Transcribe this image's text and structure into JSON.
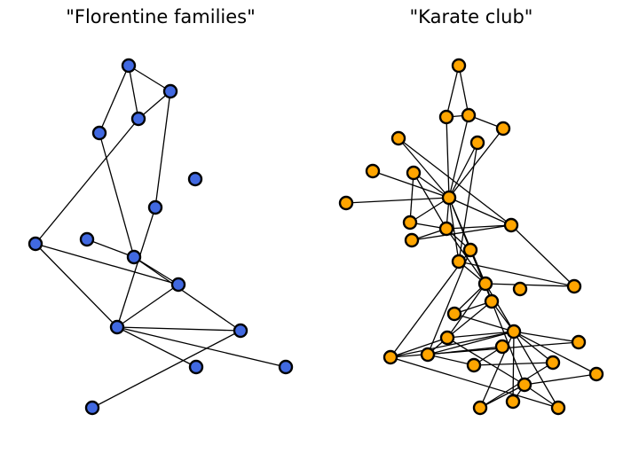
{
  "panels": [
    {
      "title": "\"Florentine families\"",
      "node_color": "#4169e1",
      "nodes": [
        "n0",
        "n1",
        "n2",
        "n3",
        "n4",
        "n5",
        "n6",
        "n7",
        "n8",
        "n9",
        "n10",
        "n11",
        "n12",
        "n13",
        "n14"
      ],
      "edges": [
        [
          "n0",
          "n1"
        ],
        [
          "n0",
          "n2"
        ],
        [
          "n0",
          "n3"
        ],
        [
          "n1",
          "n2"
        ],
        [
          "n1",
          "n5"
        ],
        [
          "n2",
          "n6"
        ],
        [
          "n3",
          "n8"
        ],
        [
          "n5",
          "n10"
        ],
        [
          "n6",
          "n9"
        ],
        [
          "n6",
          "n10"
        ],
        [
          "n7",
          "n8"
        ],
        [
          "n8",
          "n9"
        ],
        [
          "n8",
          "n11"
        ],
        [
          "n9",
          "n10"
        ],
        [
          "n10",
          "n11"
        ],
        [
          "n10",
          "n12"
        ],
        [
          "n10",
          "n13"
        ],
        [
          "n11",
          "n14"
        ]
      ]
    },
    {
      "title": "\"Karate club\"",
      "node_color": "#ffa500",
      "nodes": [
        "k0",
        "k1",
        "k2",
        "k3",
        "k4",
        "k5",
        "k6",
        "k7",
        "k8",
        "k9",
        "k10",
        "k11",
        "k12",
        "k13",
        "k14",
        "k15",
        "k16",
        "k17",
        "k18",
        "k19",
        "k20",
        "k21",
        "k22",
        "k23",
        "k24",
        "k25",
        "k26",
        "k27",
        "k28",
        "k29",
        "k30",
        "k31",
        "k32",
        "k33"
      ],
      "edges": [
        [
          "k0",
          "k1"
        ],
        [
          "k0",
          "k2"
        ],
        [
          "k1",
          "k2"
        ],
        [
          "k2",
          "k3"
        ],
        [
          "k1",
          "k4"
        ],
        [
          "k2",
          "k4"
        ],
        [
          "k3",
          "k4"
        ],
        [
          "k4",
          "k5"
        ],
        [
          "k4",
          "k6"
        ],
        [
          "k4",
          "k7"
        ],
        [
          "k4",
          "k8"
        ],
        [
          "k4",
          "k9"
        ],
        [
          "k4",
          "k10"
        ],
        [
          "k4",
          "k11"
        ],
        [
          "k4",
          "k13"
        ],
        [
          "k4",
          "k14"
        ],
        [
          "k4",
          "k16"
        ],
        [
          "k4",
          "k17"
        ],
        [
          "k10",
          "k11"
        ],
        [
          "k11",
          "k13"
        ],
        [
          "k12",
          "k13"
        ],
        [
          "k11",
          "k12"
        ],
        [
          "k8",
          "k11"
        ],
        [
          "k8",
          "k10"
        ],
        [
          "k11",
          "k14"
        ],
        [
          "k11",
          "k17"
        ],
        [
          "k14",
          "k19"
        ],
        [
          "k15",
          "k16"
        ],
        [
          "k15",
          "k17"
        ],
        [
          "k14",
          "k23"
        ],
        [
          "k14",
          "k24"
        ],
        [
          "k16",
          "k17"
        ],
        [
          "k17",
          "k19"
        ],
        [
          "k17",
          "k21"
        ],
        [
          "k17",
          "k22"
        ],
        [
          "k19",
          "k21"
        ],
        [
          "k19",
          "k22"
        ],
        [
          "k21",
          "k22"
        ],
        [
          "k19",
          "k29"
        ],
        [
          "k21",
          "k29"
        ],
        [
          "k20",
          "k19"
        ],
        [
          "k20",
          "k22"
        ],
        [
          "k21",
          "k23"
        ],
        [
          "k21",
          "k24"
        ],
        [
          "k22",
          "k23"
        ],
        [
          "k23",
          "k25"
        ],
        [
          "k25",
          "k26"
        ],
        [
          "k23",
          "k26"
        ],
        [
          "k22",
          "k24"
        ],
        [
          "k24",
          "k27"
        ],
        [
          "k22",
          "k27"
        ],
        [
          "k22",
          "k28"
        ],
        [
          "k22",
          "k30"
        ],
        [
          "k22",
          "k31"
        ],
        [
          "k22",
          "k32"
        ],
        [
          "k22",
          "k33"
        ],
        [
          "k29",
          "k30"
        ],
        [
          "k29",
          "k31"
        ],
        [
          "k29",
          "k32"
        ],
        [
          "k29",
          "k33"
        ],
        [
          "k31",
          "k28"
        ],
        [
          "k24",
          "k33"
        ],
        [
          "k17",
          "k20"
        ],
        [
          "k5",
          "k16"
        ],
        [
          "k25",
          "k28"
        ],
        [
          "k13",
          "k15"
        ],
        [
          "k6",
          "k13"
        ]
      ]
    }
  ]
}
